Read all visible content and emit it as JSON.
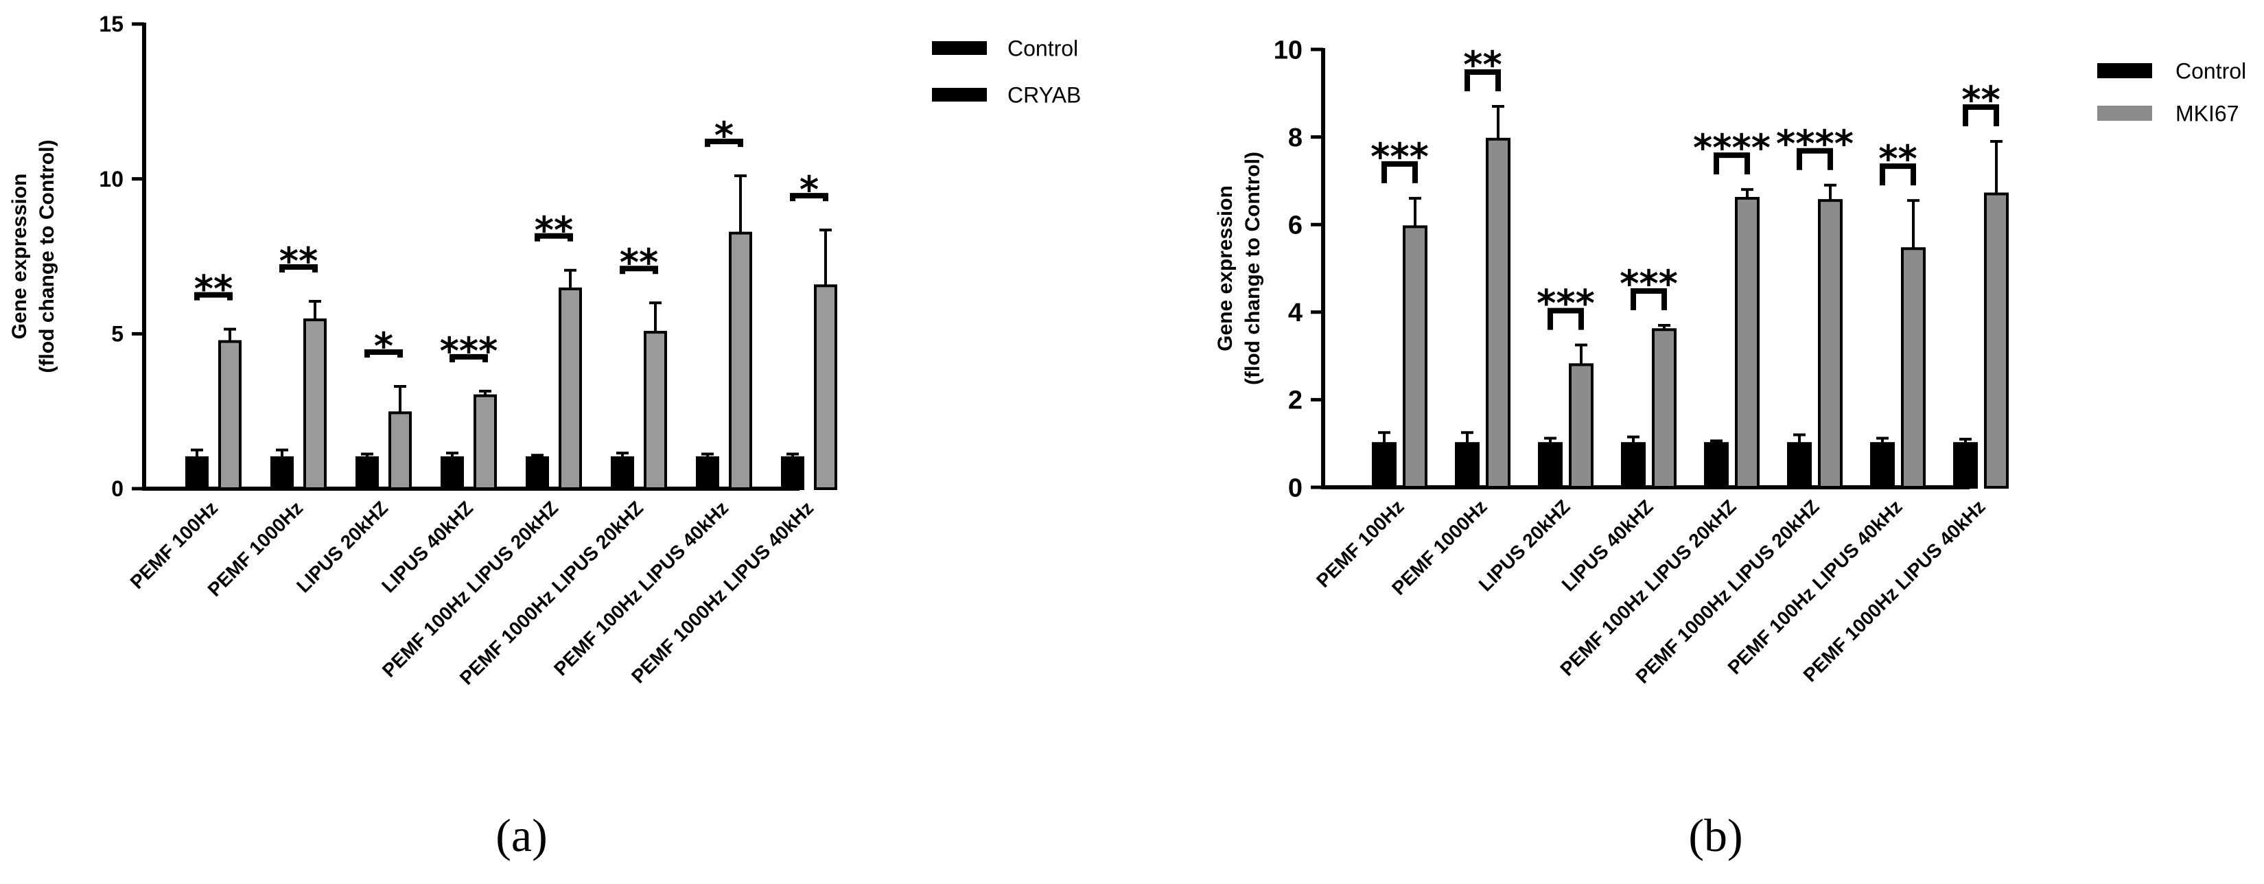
{
  "chart_data": [
    {
      "id": "a",
      "type": "bar",
      "panel_label": "(a)",
      "title": "",
      "xlabel": "",
      "ylabel_lines": [
        "Gene expression",
        "(flod change to Control)"
      ],
      "ylim": [
        0,
        15
      ],
      "yticks": [
        "0",
        "5",
        "10",
        "15"
      ],
      "categories": [
        "PEMF 100Hz",
        "PEMF 1000Hz",
        "LIPUS 20kHZ",
        "LIPUS 40kHZ",
        "PEMF 100Hz LIPUS 20kHZ",
        "PEMF 1000Hz LIPUS 20kHZ",
        "PEMF 100Hz LIPUS 40kHz",
        "PEMF 1000Hz LIPUS 40kHz"
      ],
      "series": [
        {
          "name": "Control",
          "color": "#000000",
          "values": [
            1.0,
            1.0,
            1.0,
            1.0,
            1.0,
            1.0,
            1.0,
            1.0
          ],
          "errors": [
            0.25,
            0.25,
            0.12,
            0.15,
            0.08,
            0.15,
            0.12,
            0.12
          ]
        },
        {
          "name": "CRYAB",
          "color": "#9a9a9a",
          "values": [
            4.75,
            5.45,
            2.45,
            3.0,
            6.45,
            5.05,
            8.25,
            6.55
          ],
          "errors": [
            0.4,
            0.6,
            0.85,
            0.15,
            0.6,
            0.95,
            1.85,
            1.8
          ]
        }
      ],
      "significance": [
        "**",
        "**",
        "*",
        "***",
        "**",
        "**",
        "*",
        "*"
      ],
      "legend": [
        "Control",
        "CRYAB"
      ],
      "legend_position": "top-right"
    },
    {
      "id": "b",
      "type": "bar",
      "panel_label": "(b)",
      "title": "",
      "xlabel": "",
      "ylabel_lines": [
        "Gene expression",
        "(flod change to Control)"
      ],
      "ylim": [
        0,
        10
      ],
      "yticks": [
        "0",
        "2",
        "4",
        "6",
        "8",
        "10"
      ],
      "categories": [
        "PEMF 100Hz",
        "PEMF 1000Hz",
        "LIPUS 20kHZ",
        "LIPUS 40kHZ",
        "PEMF 100Hz LIPUS 20kHZ",
        "PEMF 1000Hz LIPUS 20kHZ",
        "PEMF 100Hz LIPUS 40kHz",
        "PEMF 1000Hz LIPUS 40kHz"
      ],
      "series": [
        {
          "name": "Control",
          "color": "#000000",
          "values": [
            1.0,
            1.0,
            1.0,
            1.0,
            1.0,
            1.0,
            1.0,
            1.0
          ],
          "errors": [
            0.25,
            0.25,
            0.12,
            0.15,
            0.06,
            0.2,
            0.12,
            0.1
          ]
        },
        {
          "name": "MKI67",
          "color": "#8c8c8c",
          "values": [
            5.95,
            7.95,
            2.8,
            3.6,
            6.6,
            6.55,
            5.45,
            6.7
          ],
          "errors": [
            0.65,
            0.75,
            0.45,
            0.1,
            0.2,
            0.35,
            1.1,
            1.2
          ]
        }
      ],
      "significance": [
        "***",
        "**",
        "***",
        "***",
        "****",
        "****",
        "**",
        "**"
      ],
      "legend": [
        "Control",
        "MKI67"
      ],
      "legend_position": "top-right"
    }
  ]
}
